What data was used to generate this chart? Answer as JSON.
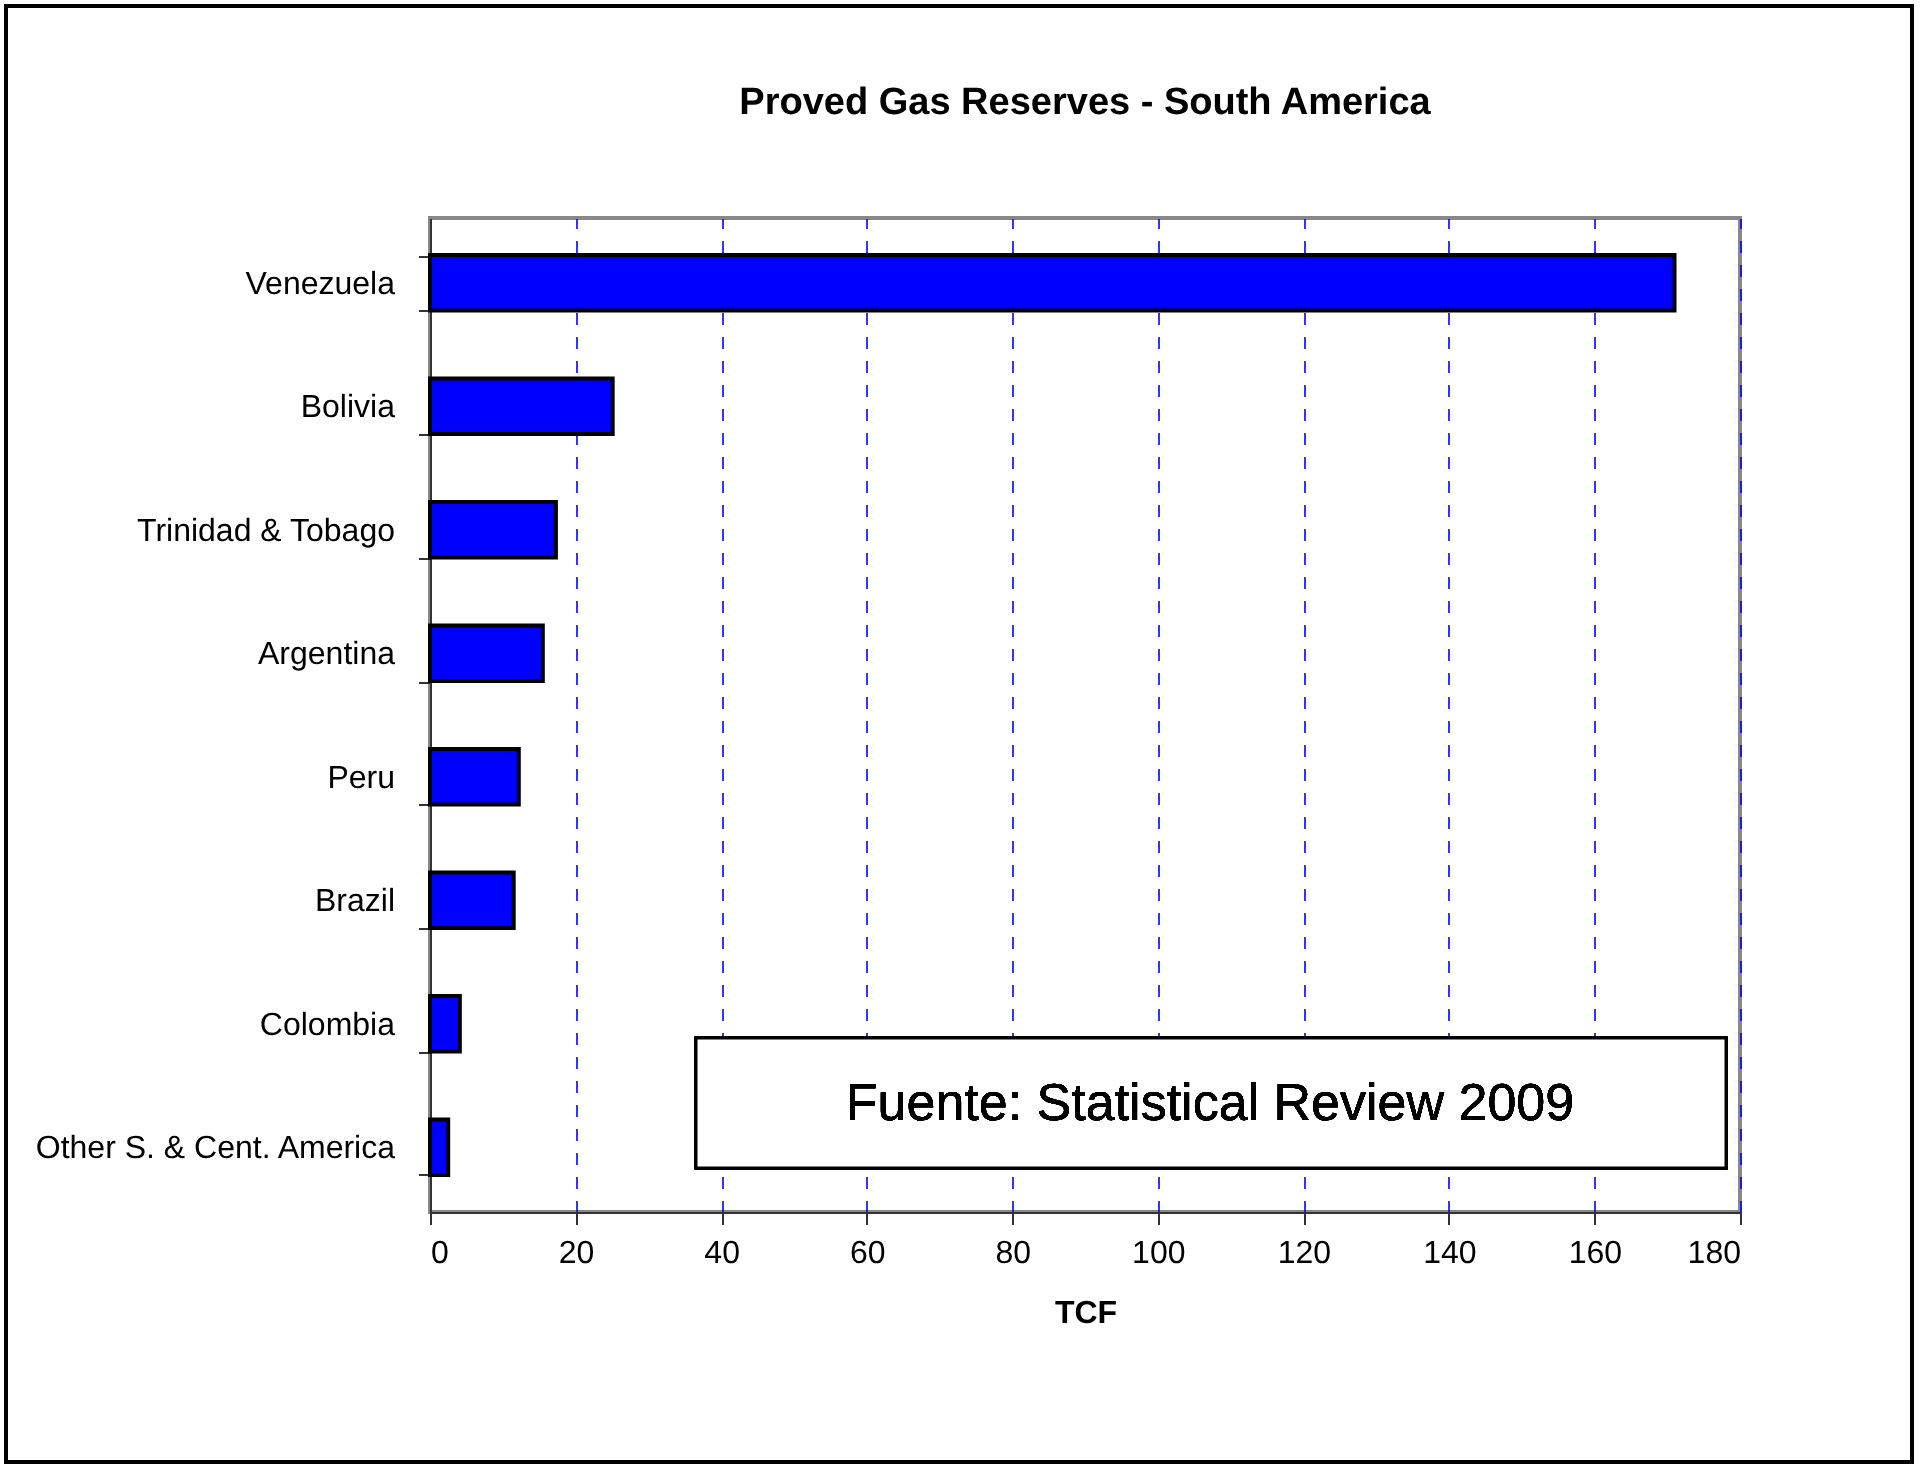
{
  "chart_data": {
    "type": "bar",
    "orientation": "horizontal",
    "title": "Proved Gas Reserves - South America",
    "xlabel": "TCF",
    "categories": [
      "Venezuela",
      "Bolivia",
      "Trinidad & Tobago",
      "Argentina",
      "Peru",
      "Brazil",
      "Colombia",
      "Other S. & Cent. America"
    ],
    "values": [
      171,
      25.1,
      17.3,
      15.5,
      12.2,
      11.5,
      4.1,
      2.5
    ],
    "color": "#0000ff",
    "xlim": [
      0,
      180
    ],
    "xticks": [
      0,
      20,
      40,
      60,
      80,
      100,
      120,
      140,
      160,
      180
    ],
    "grid": "x",
    "annotations": [
      "Fuente: Statistical Review 2009"
    ]
  }
}
